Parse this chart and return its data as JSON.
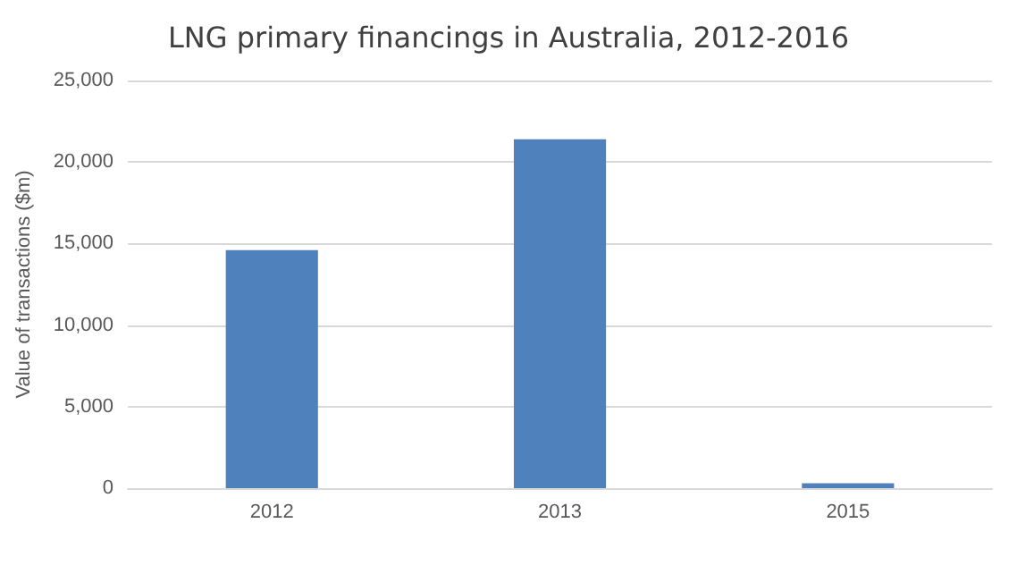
{
  "chart_data": {
    "type": "bar",
    "title": "LNG primary financings in Australia, 2012-2016",
    "ylabel": "Value of transactions ($m)",
    "categories": [
      "2012",
      "2013",
      "2015"
    ],
    "values": [
      14600,
      21400,
      300
    ],
    "color": "#4f81bd",
    "ylim": [
      0,
      25000
    ],
    "yticks": [
      {
        "value": 0,
        "label": "0"
      },
      {
        "value": 5000,
        "label": "5,000"
      },
      {
        "value": 10000,
        "label": "10,000"
      },
      {
        "value": 15000,
        "label": "15,000"
      },
      {
        "value": 20000,
        "label": "20,000"
      },
      {
        "value": 25000,
        "label": "25,000"
      }
    ],
    "grid": "y"
  }
}
